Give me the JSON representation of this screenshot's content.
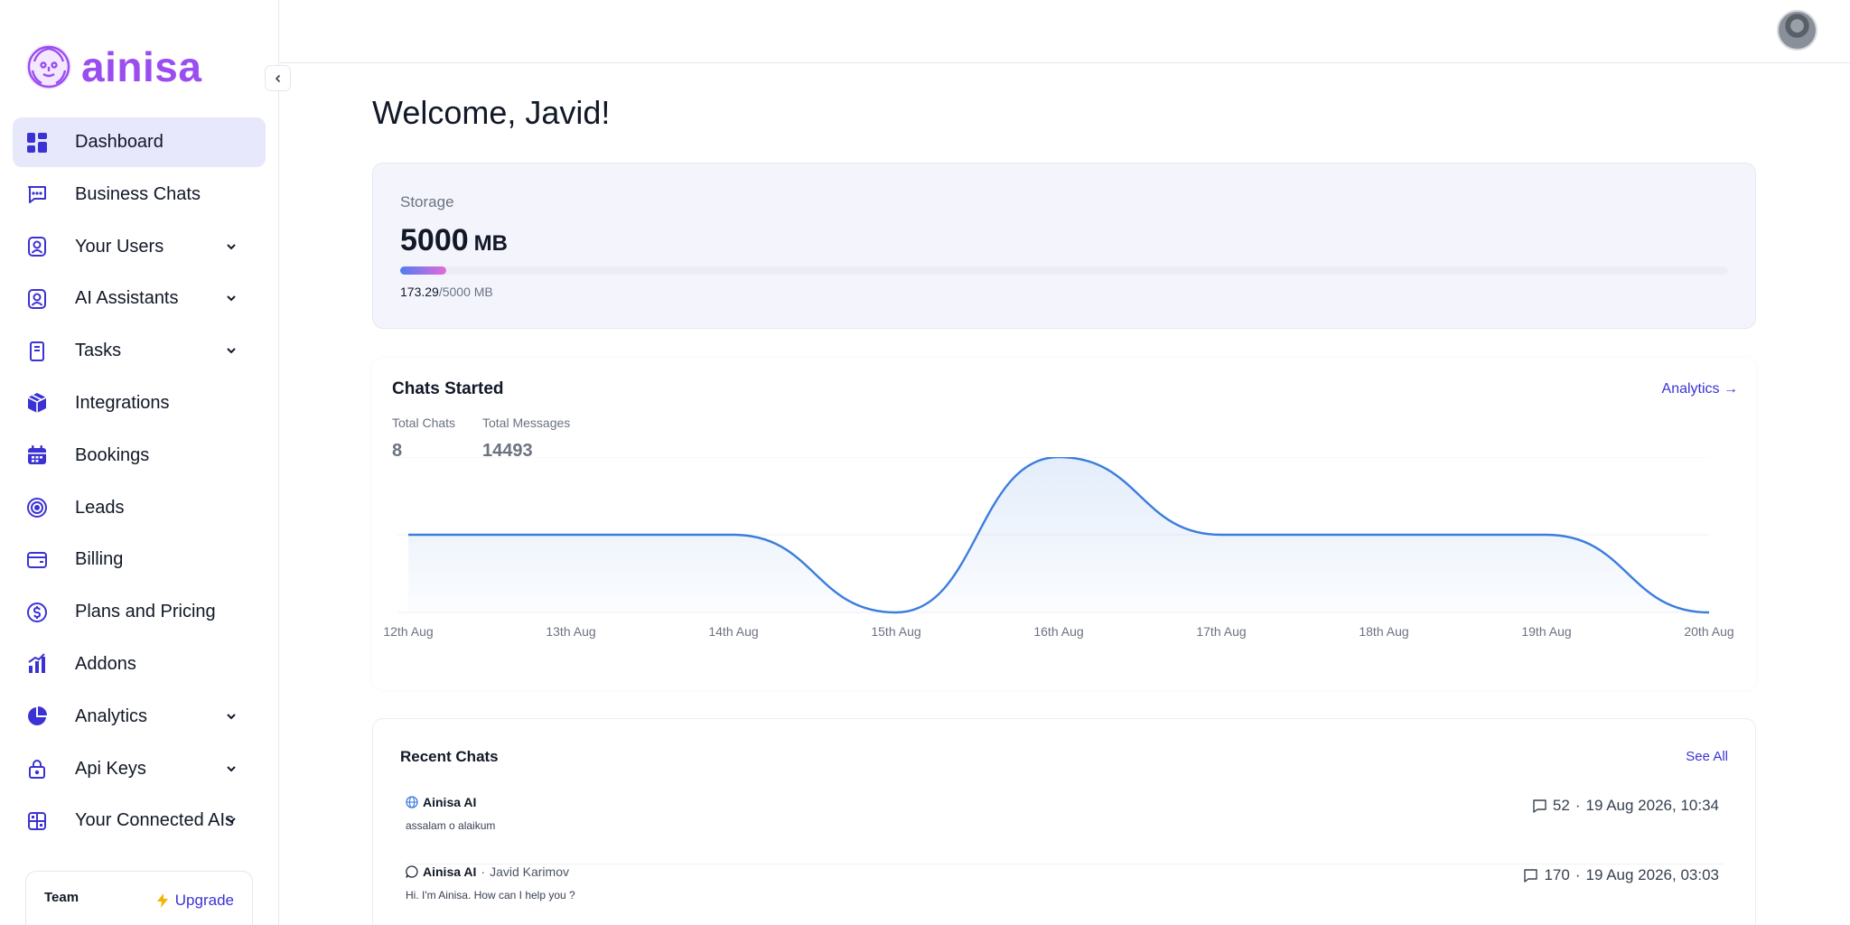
{
  "brand": {
    "name": "ainisa",
    "color": "#9b4df0"
  },
  "sidebar": {
    "items": [
      {
        "label": "Dashboard",
        "icon": "dashboard-grid-icon",
        "active": true
      },
      {
        "label": "Business Chats",
        "icon": "chat-bubble-icon"
      },
      {
        "label": "Your Users",
        "icon": "user-badge-icon",
        "expandable": true
      },
      {
        "label": "AI Assistants",
        "icon": "assistant-badge-icon",
        "expandable": true
      },
      {
        "label": "Tasks",
        "icon": "clipboard-icon",
        "expandable": true
      },
      {
        "label": "Integrations",
        "icon": "cube-icon"
      },
      {
        "label": "Bookings",
        "icon": "calendar-icon"
      },
      {
        "label": "Leads",
        "icon": "target-icon"
      },
      {
        "label": "Billing",
        "icon": "wallet-icon"
      },
      {
        "label": "Plans and Pricing",
        "icon": "dollar-circle-icon"
      },
      {
        "label": "Addons",
        "icon": "bar-chart-icon"
      },
      {
        "label": "Analytics",
        "icon": "pie-chart-icon",
        "expandable": true
      },
      {
        "label": "Api Keys",
        "icon": "lock-icon",
        "expandable": true
      },
      {
        "label": "Your Connected AIs",
        "icon": "apps-grid-icon",
        "expandable": true
      }
    ],
    "team": {
      "label": "Team",
      "upgrade_label": "Upgrade"
    }
  },
  "main": {
    "welcome": "Welcome, Javid!",
    "storage": {
      "label": "Storage",
      "total": "5000",
      "unit": "MB",
      "used": "173.29",
      "detail_suffix": "/5000 MB",
      "used_fraction": 0.0347
    },
    "chats": {
      "title": "Chats Started",
      "link_label": "Analytics →",
      "stats": [
        {
          "label": "Total Chats",
          "value": "8"
        },
        {
          "label": "Total Messages",
          "value": "14493"
        }
      ]
    },
    "recent": {
      "title": "Recent Chats",
      "see_all": "See All",
      "rows": [
        {
          "channel_icon": "globe-icon",
          "name": "Ainisa AI",
          "user": "",
          "message": "assalam o alaikum",
          "count": "52",
          "date": "19 Aug 2026, 10:34"
        },
        {
          "channel_icon": "whatsapp-icon",
          "name": "Ainisa AI",
          "user": "Javid Karimov",
          "message": "Hi. I'm Ainisa. How can I help you ?",
          "count": "170",
          "date": "19 Aug 2026, 03:03"
        }
      ]
    }
  },
  "chart_data": {
    "type": "area",
    "categories": [
      "12th Aug",
      "13th Aug",
      "14th Aug",
      "15th Aug",
      "16th Aug",
      "17th Aug",
      "18th Aug",
      "19th Aug",
      "20th Aug"
    ],
    "values": [
      1,
      1,
      1,
      0,
      2,
      1,
      1,
      1,
      0
    ],
    "ylim": [
      0,
      2
    ],
    "grid": true,
    "color": "#3b7ddd"
  }
}
